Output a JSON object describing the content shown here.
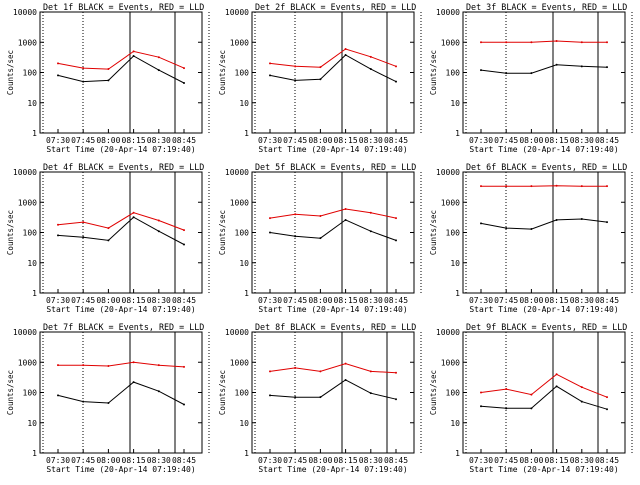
{
  "chart_data": [
    {
      "type": "line",
      "title": "Det 1f BLACK = Events, RED = LLD",
      "ylabel": "Counts/sec",
      "xlabel": "Start Time (20-Apr-14 07:19:40)",
      "yscale": "log",
      "ylim": [
        1,
        10000
      ],
      "x": [
        "07:30",
        "07:45",
        "08:00",
        "08:15",
        "08:30",
        "08:45"
      ],
      "series": [
        {
          "name": "LLD",
          "color": "#e00000",
          "values": [
            200,
            140,
            130,
            500,
            320,
            140
          ]
        },
        {
          "name": "Events",
          "color": "#000000",
          "values": [
            80,
            50,
            55,
            350,
            120,
            45
          ]
        }
      ]
    },
    {
      "type": "line",
      "title": "Det 2f BLACK = Events, RED = LLD",
      "ylabel": "Counts/sec",
      "xlabel": "Start Time (20-Apr-14 07:19:40)",
      "yscale": "log",
      "ylim": [
        1,
        10000
      ],
      "x": [
        "07:30",
        "07:45",
        "08:00",
        "08:15",
        "08:30",
        "08:45"
      ],
      "series": [
        {
          "name": "LLD",
          "color": "#e00000",
          "values": [
            200,
            160,
            150,
            600,
            330,
            160
          ]
        },
        {
          "name": "Events",
          "color": "#000000",
          "values": [
            80,
            55,
            60,
            380,
            130,
            50
          ]
        }
      ]
    },
    {
      "type": "line",
      "title": "Det 3f BLACK = Events, RED = LLD",
      "ylabel": "Counts/sec",
      "xlabel": "Start Time (20-Apr-14 07:19:40)",
      "yscale": "log",
      "ylim": [
        1,
        10000
      ],
      "x": [
        "07:30",
        "07:45",
        "08:00",
        "08:15",
        "08:30",
        "08:45"
      ],
      "series": [
        {
          "name": "LLD",
          "color": "#e00000",
          "values": [
            1000,
            1000,
            1000,
            1100,
            1000,
            1000
          ]
        },
        {
          "name": "Events",
          "color": "#000000",
          "values": [
            120,
            95,
            95,
            180,
            160,
            150
          ]
        }
      ]
    },
    {
      "type": "line",
      "title": "Det 4f BLACK = Events, RED = LLD",
      "ylabel": "Counts/sec",
      "xlabel": "Start Time (20-Apr-14 07:19:40)",
      "yscale": "log",
      "ylim": [
        1,
        10000
      ],
      "x": [
        "07:30",
        "07:45",
        "08:00",
        "08:15",
        "08:30",
        "08:45"
      ],
      "series": [
        {
          "name": "LLD",
          "color": "#e00000",
          "values": [
            180,
            220,
            140,
            450,
            250,
            120
          ]
        },
        {
          "name": "Events",
          "color": "#000000",
          "values": [
            80,
            70,
            55,
            320,
            110,
            40
          ]
        }
      ]
    },
    {
      "type": "line",
      "title": "Det 5f BLACK = Events, RED = LLD",
      "ylabel": "Counts/sec",
      "xlabel": "Start Time (20-Apr-14 07:19:40)",
      "yscale": "log",
      "ylim": [
        1,
        10000
      ],
      "x": [
        "07:30",
        "07:45",
        "08:00",
        "08:15",
        "08:30",
        "08:45"
      ],
      "series": [
        {
          "name": "LLD",
          "color": "#e00000",
          "values": [
            300,
            400,
            350,
            600,
            450,
            300
          ]
        },
        {
          "name": "Events",
          "color": "#000000",
          "values": [
            100,
            75,
            65,
            260,
            110,
            55
          ]
        }
      ]
    },
    {
      "type": "line",
      "title": "Det 6f BLACK = Events, RED = LLD",
      "ylabel": "Counts/sec",
      "xlabel": "Start Time (20-Apr-14 07:19:40)",
      "yscale": "log",
      "ylim": [
        1,
        10000
      ],
      "x": [
        "07:30",
        "07:45",
        "08:00",
        "08:15",
        "08:30",
        "08:45"
      ],
      "series": [
        {
          "name": "LLD",
          "color": "#e00000",
          "values": [
            3400,
            3400,
            3400,
            3500,
            3400,
            3400
          ]
        },
        {
          "name": "Events",
          "color": "#000000",
          "values": [
            200,
            140,
            130,
            260,
            280,
            220
          ]
        }
      ]
    },
    {
      "type": "line",
      "title": "Det 7f BLACK = Events, RED = LLD",
      "ylabel": "Counts/sec",
      "xlabel": "Start Time (20-Apr-14 07:19:40)",
      "yscale": "log",
      "ylim": [
        1,
        10000
      ],
      "x": [
        "07:30",
        "07:45",
        "08:00",
        "08:15",
        "08:30",
        "08:45"
      ],
      "series": [
        {
          "name": "LLD",
          "color": "#e00000",
          "values": [
            800,
            800,
            750,
            1000,
            800,
            700
          ]
        },
        {
          "name": "Events",
          "color": "#000000",
          "values": [
            80,
            50,
            45,
            220,
            110,
            40
          ]
        }
      ]
    },
    {
      "type": "line",
      "title": "Det 8f BLACK = Events, RED = LLD",
      "ylabel": "Counts/sec",
      "xlabel": "Start Time (20-Apr-14 07:19:40)",
      "yscale": "log",
      "ylim": [
        1,
        10000
      ],
      "x": [
        "07:30",
        "07:45",
        "08:00",
        "08:15",
        "08:30",
        "08:45"
      ],
      "series": [
        {
          "name": "LLD",
          "color": "#e00000",
          "values": [
            500,
            650,
            500,
            900,
            500,
            450
          ]
        },
        {
          "name": "Events",
          "color": "#000000",
          "values": [
            80,
            70,
            70,
            260,
            95,
            60
          ]
        }
      ]
    },
    {
      "type": "line",
      "title": "Det 9f BLACK = Events, RED = LLD",
      "ylabel": "Counts/sec",
      "xlabel": "Start Time (20-Apr-14 07:19:40)",
      "yscale": "log",
      "ylim": [
        1,
        10000
      ],
      "x": [
        "07:30",
        "07:45",
        "08:00",
        "08:15",
        "08:30",
        "08:45"
      ],
      "series": [
        {
          "name": "LLD",
          "color": "#e00000",
          "values": [
            100,
            130,
            85,
            400,
            150,
            70
          ]
        },
        {
          "name": "Events",
          "color": "#000000",
          "values": [
            35,
            30,
            30,
            160,
            50,
            28
          ]
        }
      ]
    }
  ]
}
